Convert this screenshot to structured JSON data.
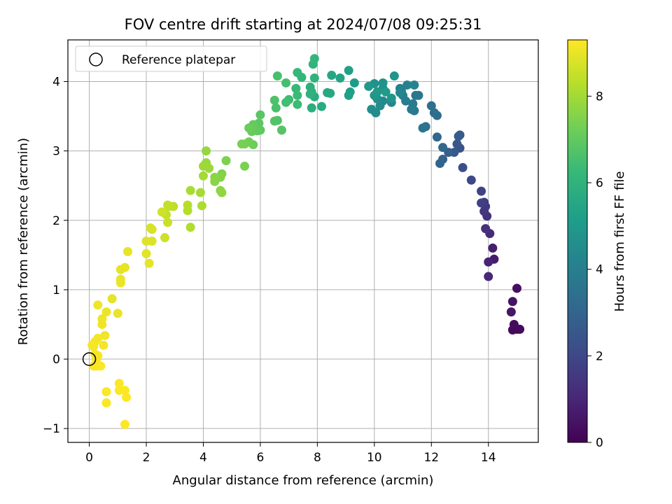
{
  "chart_data": {
    "type": "scatter",
    "title": "FOV centre drift starting at 2024/07/08 09:25:31",
    "xlabel": "Angular distance from reference (arcmin)",
    "ylabel": "Rotation from reference (arcmin)",
    "xlim": [
      -0.75,
      15.75
    ],
    "ylim": [
      -1.2,
      4.6
    ],
    "xticks": [
      0,
      2,
      4,
      6,
      8,
      10,
      12,
      14
    ],
    "yticks": [
      -1,
      0,
      1,
      2,
      3,
      4
    ],
    "x_tick_labels": [
      "0",
      "2",
      "4",
      "6",
      "8",
      "10",
      "12",
      "14"
    ],
    "y_tick_labels": [
      "−1",
      "0",
      "1",
      "2",
      "3",
      "4"
    ],
    "grid": true,
    "legend": {
      "position": "top-left",
      "entries": [
        {
          "label": "Reference platepar",
          "marker": "open-circle"
        }
      ]
    },
    "reference_point": {
      "x": 0,
      "y": 0
    },
    "colorbar": {
      "label": "Hours from first FF file",
      "colormap": "viridis",
      "range": [
        0,
        9.3
      ],
      "ticks": [
        0,
        2,
        4,
        6,
        8
      ],
      "tick_labels": [
        "0",
        "2",
        "4",
        "6",
        "8"
      ]
    },
    "series": [
      {
        "points": [
          [
            15.0,
            0.43,
            0.1
          ],
          [
            14.85,
            0.42,
            0.2
          ],
          [
            15.1,
            0.43,
            0.25
          ],
          [
            14.9,
            0.5,
            0.3
          ],
          [
            15.0,
            1.02,
            0.35
          ],
          [
            14.85,
            0.83,
            0.45
          ],
          [
            14.8,
            0.68,
            0.55
          ],
          [
            14.2,
            1.44,
            0.7
          ],
          [
            14.15,
            1.6,
            0.8
          ],
          [
            14.0,
            1.4,
            0.9
          ],
          [
            14.0,
            1.19,
            1.0
          ],
          [
            14.05,
            1.81,
            1.1
          ],
          [
            13.9,
            1.88,
            1.25
          ],
          [
            13.95,
            2.06,
            1.35
          ],
          [
            13.85,
            2.13,
            1.45
          ],
          [
            13.9,
            2.2,
            1.55
          ],
          [
            13.85,
            2.26,
            1.65
          ],
          [
            13.75,
            2.25,
            1.75
          ],
          [
            13.75,
            2.42,
            1.85
          ],
          [
            13.4,
            2.58,
            2.0
          ],
          [
            13.1,
            2.76,
            2.2
          ],
          [
            13.0,
            3.04,
            2.4
          ],
          [
            12.9,
            3.1,
            2.5
          ],
          [
            12.8,
            2.98,
            2.6
          ],
          [
            13.0,
            3.23,
            2.65
          ],
          [
            12.95,
            3.21,
            2.7
          ],
          [
            12.6,
            2.98,
            2.8
          ],
          [
            12.4,
            2.88,
            2.9
          ],
          [
            12.3,
            2.82,
            3.0
          ],
          [
            12.4,
            3.05,
            3.05
          ],
          [
            12.2,
            3.2,
            3.15
          ],
          [
            12.2,
            3.51,
            3.3
          ],
          [
            12.1,
            3.55,
            3.35
          ],
          [
            12.0,
            3.65,
            3.4
          ],
          [
            11.8,
            3.35,
            3.45
          ],
          [
            11.7,
            3.33,
            3.55
          ],
          [
            11.55,
            3.8,
            3.65
          ],
          [
            11.45,
            3.8,
            3.7
          ],
          [
            11.4,
            3.58,
            3.75
          ],
          [
            11.3,
            3.6,
            3.85
          ],
          [
            11.35,
            3.68,
            3.9
          ],
          [
            11.1,
            3.72,
            3.95
          ],
          [
            11.0,
            3.8,
            4.0
          ],
          [
            10.95,
            3.86,
            4.05
          ],
          [
            10.9,
            3.9,
            4.1
          ],
          [
            11.15,
            3.95,
            4.15
          ],
          [
            11.4,
            3.95,
            4.2
          ],
          [
            10.9,
            3.84,
            4.25
          ],
          [
            10.6,
            3.7,
            4.3
          ],
          [
            10.3,
            3.72,
            4.4
          ],
          [
            10.2,
            3.65,
            4.45
          ],
          [
            10.05,
            3.55,
            4.5
          ],
          [
            9.9,
            3.6,
            4.55
          ],
          [
            10.1,
            3.75,
            4.6
          ],
          [
            10.3,
            3.9,
            4.65
          ],
          [
            10.0,
            3.97,
            4.7
          ],
          [
            10.3,
            3.98,
            4.75
          ],
          [
            10.6,
            3.76,
            4.8
          ],
          [
            10.7,
            4.08,
            4.85
          ],
          [
            10.0,
            3.8,
            4.9
          ],
          [
            9.8,
            3.93,
            4.95
          ],
          [
            10.1,
            3.85,
            5.0
          ],
          [
            10.4,
            3.85,
            5.05
          ],
          [
            9.3,
            3.98,
            5.1
          ],
          [
            9.15,
            3.85,
            5.2
          ],
          [
            9.1,
            3.8,
            5.25
          ],
          [
            9.1,
            4.16,
            5.3
          ],
          [
            8.8,
            4.05,
            5.4
          ],
          [
            8.5,
            4.09,
            5.5
          ],
          [
            8.35,
            3.84,
            5.55
          ],
          [
            8.45,
            3.83,
            5.6
          ],
          [
            8.15,
            3.64,
            5.7
          ],
          [
            7.9,
            3.78,
            5.75
          ],
          [
            7.8,
            3.62,
            5.8
          ],
          [
            7.75,
            3.92,
            5.85
          ],
          [
            7.8,
            3.85,
            5.9
          ],
          [
            7.75,
            3.82,
            5.95
          ],
          [
            7.9,
            4.05,
            6.0
          ],
          [
            7.85,
            4.25,
            6.05
          ],
          [
            7.9,
            4.33,
            6.1
          ],
          [
            7.45,
            4.06,
            6.15
          ],
          [
            7.3,
            4.13,
            6.2
          ],
          [
            7.25,
            3.9,
            6.25
          ],
          [
            7.3,
            3.8,
            6.3
          ],
          [
            7.3,
            3.67,
            6.35
          ],
          [
            7.0,
            3.74,
            6.4
          ],
          [
            6.9,
            3.7,
            6.45
          ],
          [
            6.9,
            3.98,
            6.5
          ],
          [
            6.6,
            4.08,
            6.55
          ],
          [
            6.55,
            3.62,
            6.6
          ],
          [
            6.5,
            3.73,
            6.65
          ],
          [
            6.6,
            3.44,
            6.7
          ],
          [
            6.5,
            3.43,
            6.75
          ],
          [
            6.75,
            3.3,
            6.8
          ],
          [
            6.0,
            3.52,
            6.85
          ],
          [
            5.95,
            3.4,
            6.9
          ],
          [
            6.0,
            3.3,
            6.95
          ],
          [
            5.9,
            3.29,
            7.0
          ],
          [
            5.75,
            3.38,
            7.05
          ],
          [
            5.7,
            3.28,
            7.1
          ],
          [
            5.6,
            3.33,
            7.15
          ],
          [
            5.75,
            3.09,
            7.2
          ],
          [
            5.6,
            3.13,
            7.25
          ],
          [
            5.45,
            3.1,
            7.3
          ],
          [
            5.35,
            3.1,
            7.35
          ],
          [
            5.45,
            2.78,
            7.4
          ],
          [
            4.8,
            2.86,
            7.45
          ],
          [
            4.65,
            2.67,
            7.5
          ],
          [
            4.6,
            2.62,
            7.55
          ],
          [
            4.4,
            2.56,
            7.6
          ],
          [
            4.4,
            2.62,
            7.65
          ],
          [
            4.6,
            2.43,
            7.7
          ],
          [
            4.65,
            2.4,
            7.75
          ],
          [
            4.1,
            3.0,
            7.8
          ],
          [
            4.1,
            2.83,
            7.85
          ],
          [
            4.2,
            2.75,
            7.9
          ],
          [
            4.0,
            2.78,
            7.95
          ],
          [
            4.0,
            2.64,
            8.0
          ],
          [
            3.9,
            2.4,
            8.05
          ],
          [
            3.55,
            2.43,
            8.1
          ],
          [
            3.95,
            2.21,
            8.15
          ],
          [
            3.55,
            1.9,
            8.2
          ],
          [
            3.45,
            2.14,
            8.25
          ],
          [
            3.45,
            2.22,
            8.3
          ],
          [
            2.95,
            2.2,
            8.35
          ],
          [
            2.8,
            2.2,
            8.4
          ],
          [
            2.75,
            2.22,
            8.45
          ],
          [
            2.7,
            2.08,
            8.5
          ],
          [
            2.75,
            1.97,
            8.55
          ],
          [
            2.65,
            1.75,
            8.6
          ],
          [
            2.55,
            2.12,
            8.65
          ],
          [
            2.15,
            1.89,
            8.7
          ],
          [
            2.2,
            1.87,
            8.75
          ],
          [
            2.2,
            1.7,
            8.8
          ],
          [
            2.0,
            1.7,
            8.85
          ],
          [
            2.0,
            1.52,
            8.9
          ],
          [
            2.1,
            1.38,
            8.95
          ],
          [
            1.35,
            1.55,
            9.0
          ],
          [
            1.25,
            1.32,
            8.98
          ],
          [
            1.1,
            1.29,
            8.96
          ],
          [
            1.1,
            1.15,
            9.0
          ],
          [
            1.1,
            1.1,
            9.02
          ],
          [
            0.8,
            0.87,
            8.95
          ],
          [
            1.0,
            0.66,
            9.0
          ],
          [
            0.6,
            0.68,
            9.05
          ],
          [
            0.3,
            0.78,
            9.1
          ],
          [
            0.45,
            0.58,
            9.08
          ],
          [
            0.45,
            0.5,
            9.1
          ],
          [
            0.55,
            0.34,
            9.12
          ],
          [
            0.3,
            0.3,
            9.15
          ],
          [
            0.5,
            0.2,
            9.14
          ],
          [
            0.2,
            0.25,
            9.16
          ],
          [
            0.15,
            0.18,
            9.18
          ],
          [
            0.1,
            0.2,
            9.2
          ],
          [
            0.2,
            0.07,
            9.2
          ],
          [
            0.25,
            0.0,
            9.22
          ],
          [
            0.3,
            0.05,
            9.22
          ],
          [
            0.15,
            -0.1,
            9.24
          ],
          [
            0.25,
            -0.1,
            9.24
          ],
          [
            0.4,
            -0.1,
            9.25
          ],
          [
            0.6,
            -0.47,
            9.26
          ],
          [
            0.6,
            -0.63,
            9.26
          ],
          [
            1.05,
            -0.35,
            9.28
          ],
          [
            1.05,
            -0.45,
            9.28
          ],
          [
            1.25,
            -0.45,
            9.28
          ],
          [
            1.3,
            -0.55,
            9.3
          ],
          [
            1.25,
            -0.94,
            9.3
          ]
        ]
      }
    ]
  }
}
